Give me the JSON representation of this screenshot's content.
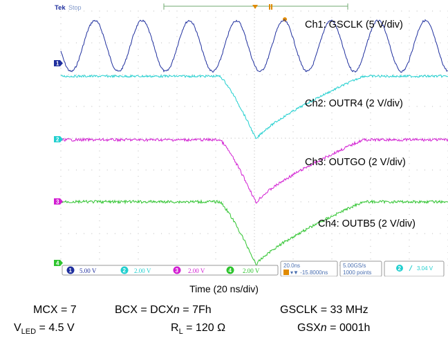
{
  "header": {
    "brand": "Tek",
    "run_state": "Stop"
  },
  "markers": {
    "ch1": "1",
    "ch2": "2",
    "ch3": "3",
    "ch4": "4",
    "trigger": "T"
  },
  "labels": {
    "ch1": "Ch1: GSCLK (5 V/div)",
    "ch2": "Ch2: OUTR4 (2 V/div)",
    "ch3": "Ch3: OUTGO (2 V/div)",
    "ch4": "Ch4: OUTB5 (2 V/div)"
  },
  "status": {
    "ch1_num": "1",
    "ch1_scale": "5.00 V",
    "ch2_num": "2",
    "ch2_scale": "2.00 V",
    "ch3_num": "3",
    "ch3_scale": "2.00 V",
    "ch4_num": "4",
    "ch4_scale": "2.00 V",
    "timebase": "20.0ns",
    "delay": "▾▼ -15.8000ns",
    "sample_rate": "5.00GS/s",
    "record_length": "1000 points",
    "trig_src": "2",
    "trig_level": "3.04 V"
  },
  "caption": {
    "time": "Time (20 ns/div)",
    "mcx": "MCX = 7",
    "bcx_prefix": "BCX = DCX",
    "bcx_var": "n",
    "bcx_suffix": " = 7Fh",
    "gsclk": "GSCLK = 33 MHz",
    "vled_main": "V",
    "vled_sub": "LED",
    "vled_value": " = 4.5 V",
    "rl_main": "R",
    "rl_sub": "L",
    "rl_value": " = 120 Ω",
    "gsx_prefix": "GSX",
    "gsx_var": "n",
    "gsx_suffix": " = 0001h"
  },
  "colors": {
    "ch1": "#1f2f9e",
    "ch2": "#21cfcf",
    "ch3": "#d21ed2",
    "ch4": "#2fc42f",
    "grid": "#b8b8b8",
    "trigger": "#e08a00",
    "text": "#000000"
  },
  "waveforms": {
    "ch1": {
      "shape": "sine",
      "periods_per_screen": 8.2,
      "amplitude_div": 0.8,
      "level_div": -2.9
    },
    "ch2": {
      "shape": "pulse_dip",
      "baseline_div": -1.95,
      "depth_div": 2.0,
      "dip_center_div": 6.0
    },
    "ch3": {
      "shape": "pulse_dip",
      "baseline_div": 0.05,
      "depth_div": 2.0,
      "dip_center_div": 6.0
    },
    "ch4": {
      "shape": "pulse_dip",
      "baseline_div": 2.0,
      "depth_div": 2.0,
      "dip_center_div": 6.0
    }
  }
}
